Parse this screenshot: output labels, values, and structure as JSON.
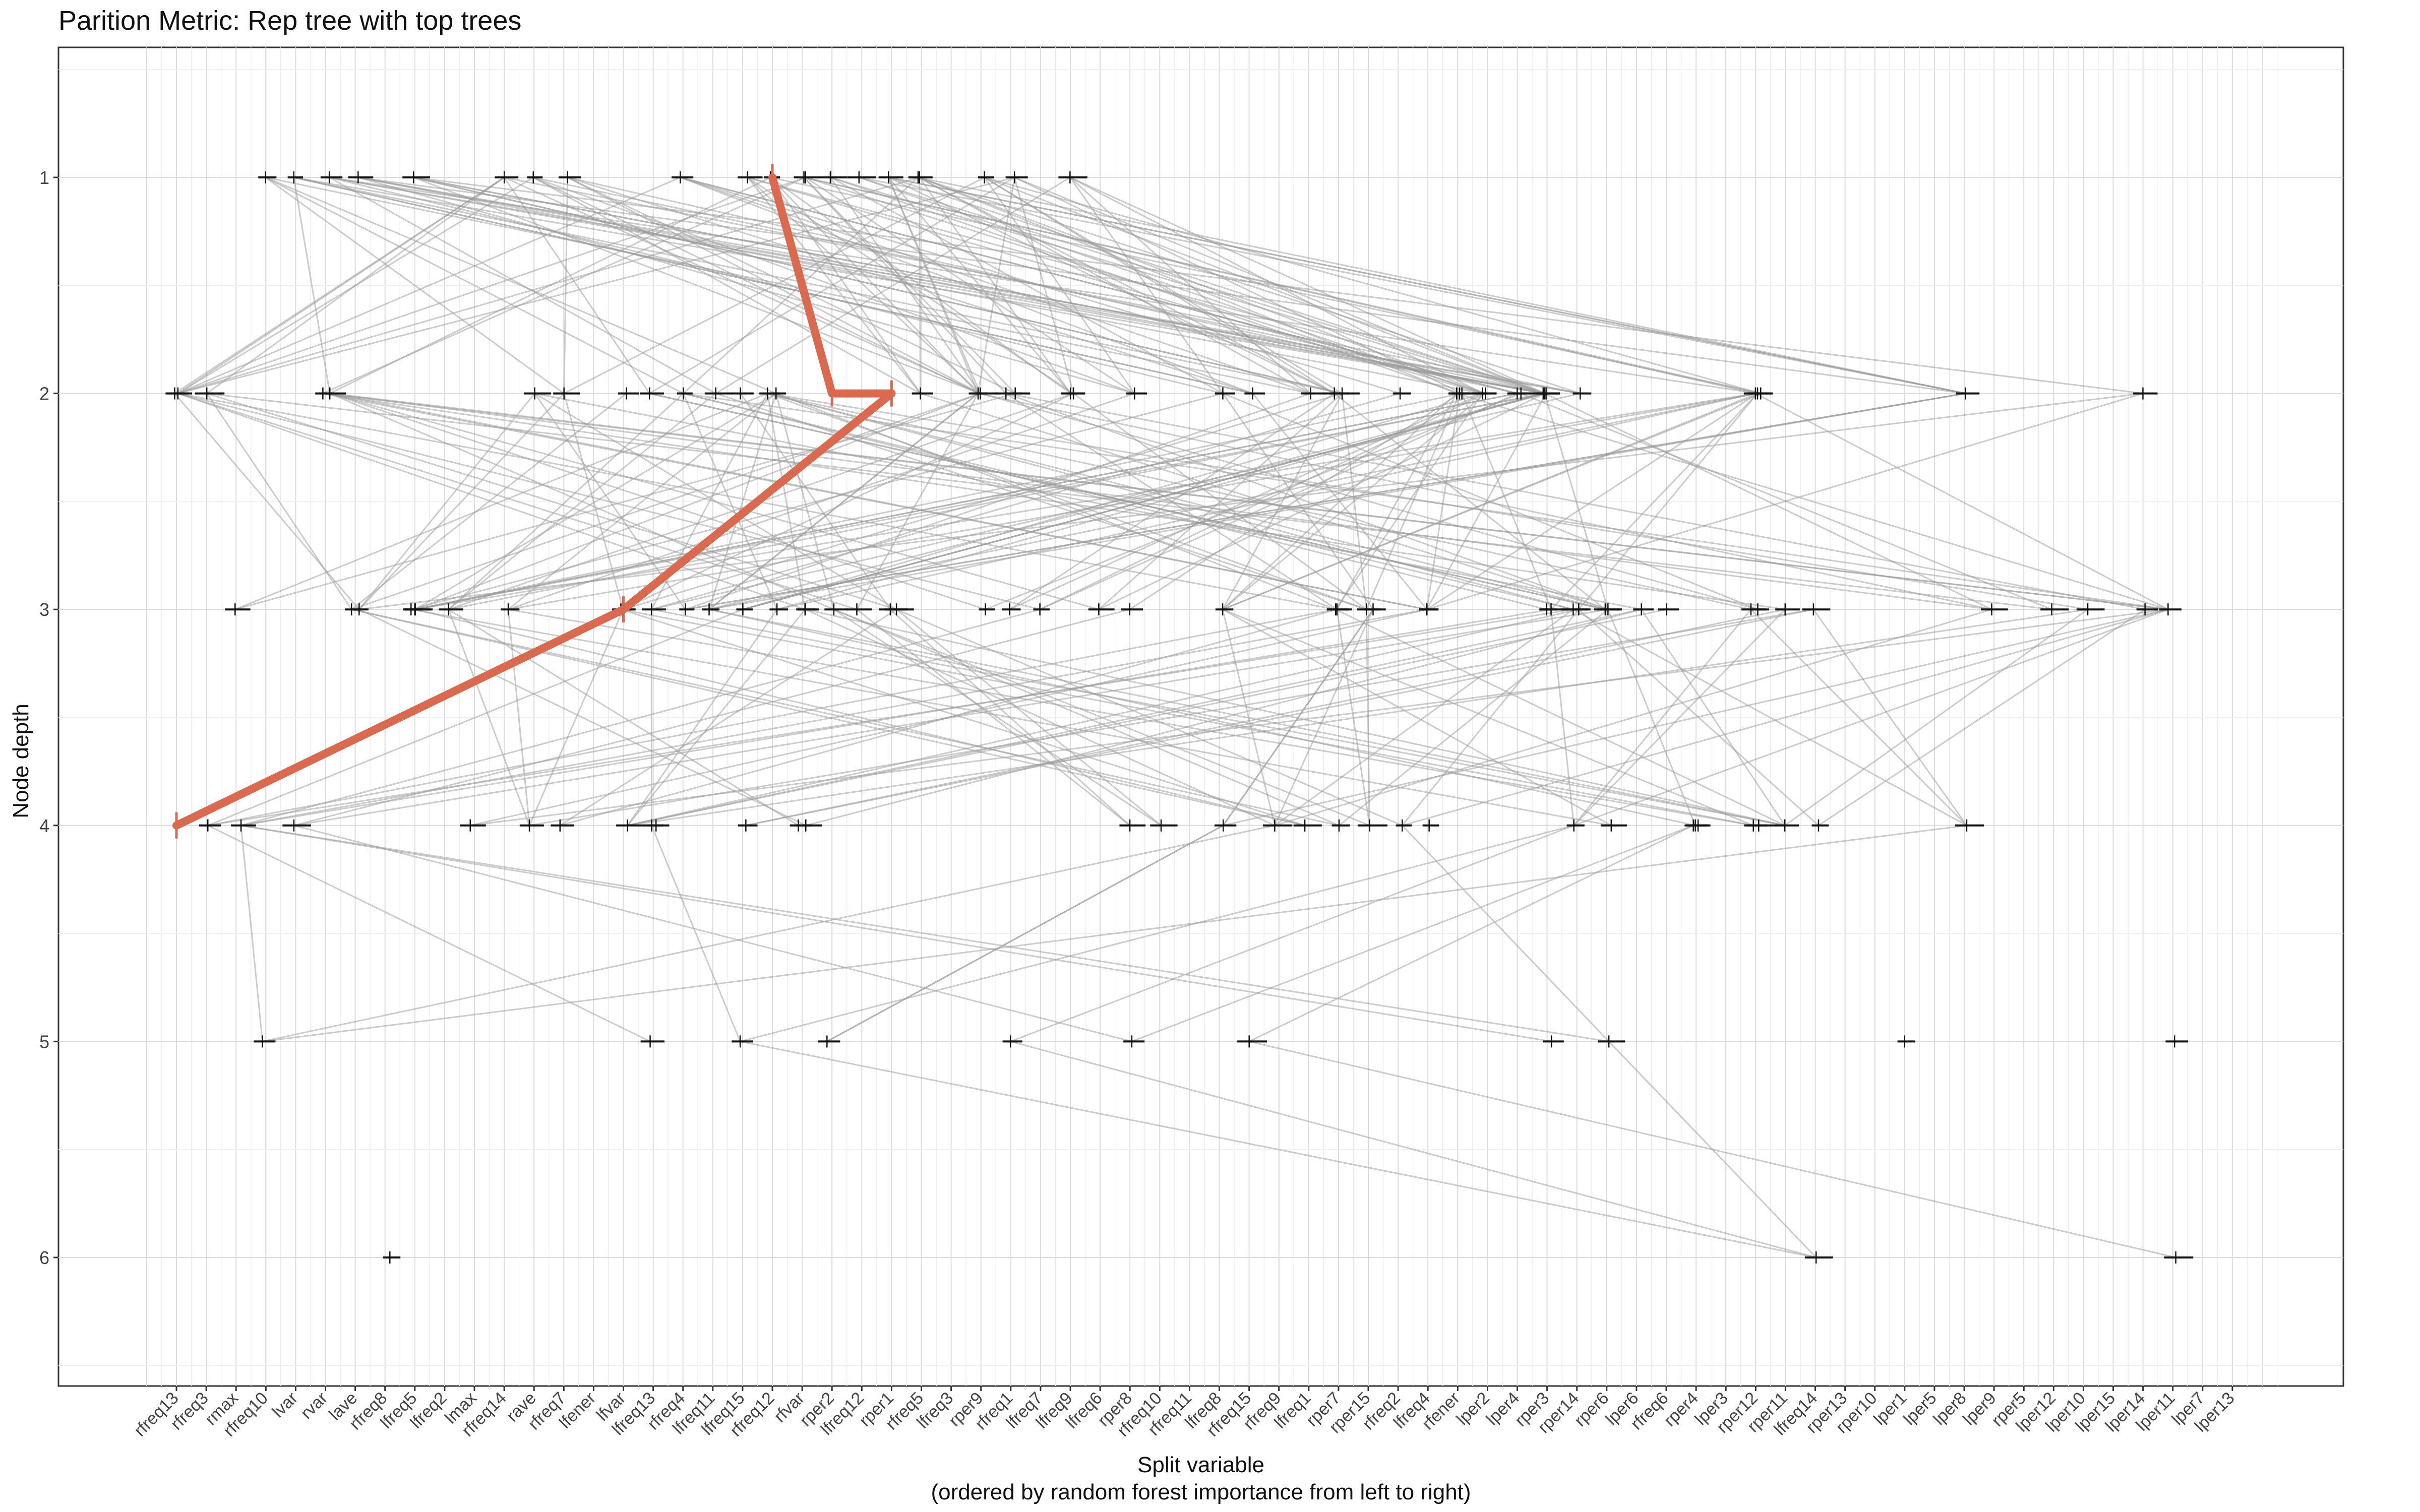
{
  "chart_data": {
    "type": "line",
    "title": "Parition Metric: Rep tree with top trees",
    "xlabel": "Split variable",
    "xlabel_note": "(ordered by random forest importance from left to right)",
    "ylabel": "Node depth",
    "y_ticks": [
      1,
      2,
      3,
      4,
      5,
      6
    ],
    "ylim": [
      6.6,
      0.4
    ],
    "y_reversed": true,
    "grid": true,
    "x_ticks_labeled": [
      "rfreq13",
      "rfreq3",
      "rmax",
      "rfreq10",
      "lvar",
      "rvar",
      "lave",
      "rfreq8",
      "lfreq5",
      "lfreq2",
      "lmax",
      "rfreq14",
      "rave",
      "rfreq7",
      "lfener",
      "lfvar",
      "lfreq13",
      "rfreq4",
      "lfreq11",
      "lfreq15",
      "rfreq12",
      "rfvar",
      "rper2",
      "lfreq12",
      "rper1",
      "rfreq5",
      "lfreq3",
      "rper9",
      "rfreq1",
      "lfreq7",
      "lfreq9",
      "lfreq6",
      "rper8",
      "rfreq10",
      "rfreq11",
      "lfreq8",
      "rfreq15",
      "rfreq9",
      "lfreq1",
      "rper7",
      "rper15",
      "rfreq2",
      "lfreq4",
      "rfener",
      "lper2",
      "lper4",
      "rper3",
      "rper14",
      "rper6",
      "lper6",
      "rfreq6",
      "rper4",
      "lper3",
      "rper12",
      "rper11",
      "lfreq14",
      "rper13",
      "rper10",
      "lper1",
      "lper5",
      "lper8",
      "lper9",
      "rper5",
      "lper12",
      "lper10",
      "lper15",
      "lper14",
      "lper11",
      "lper7",
      "lper13"
    ],
    "highlighted_path": {
      "color": "#D96A4F",
      "points": [
        {
          "x": "rfreq12",
          "depth": 1
        },
        {
          "x": "rper2",
          "depth": 2
        },
        {
          "x": "rper1",
          "depth": 2
        },
        {
          "x": "lfvar",
          "depth": 3
        },
        {
          "x": "rfreq13",
          "depth": 4
        }
      ]
    },
    "background_edges_color": "#9a9a9a",
    "node_marker_color": "#111111",
    "node_counts_per_depth": {
      "1": 22,
      "2": 44,
      "3": 50,
      "4": 31,
      "5": 11,
      "6": 3
    }
  }
}
